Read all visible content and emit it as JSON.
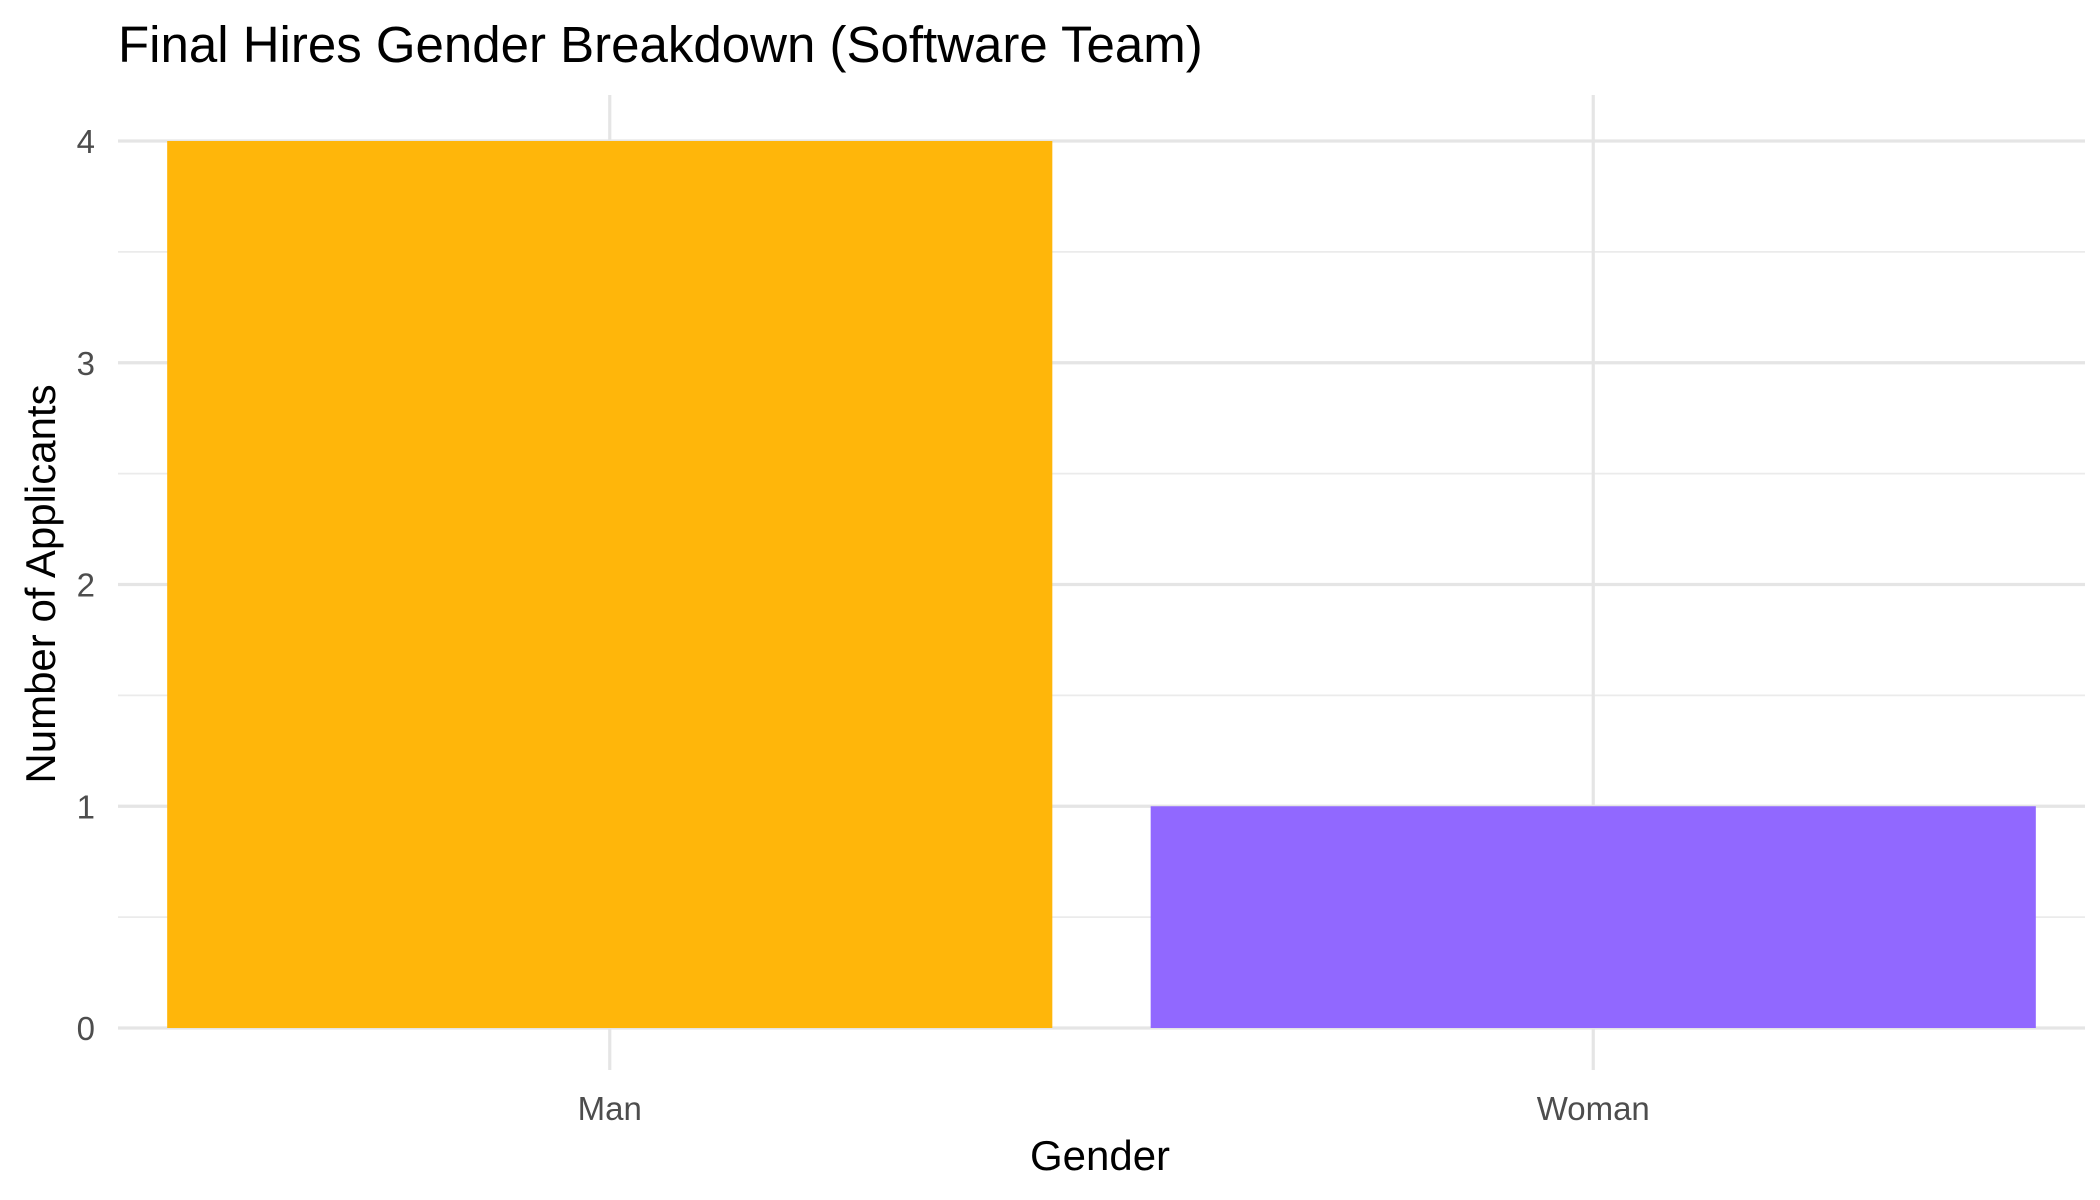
{
  "chart_data": {
    "type": "bar",
    "title": "Final Hires Gender Breakdown (Software Team)",
    "xlabel": "Gender",
    "ylabel": "Number of Applicants",
    "categories": [
      "Man",
      "Woman"
    ],
    "values": [
      4,
      1
    ],
    "colors": [
      "#FFB60A",
      "#9168FF"
    ],
    "ylim": [
      0,
      4
    ],
    "yticks": [
      0,
      1,
      2,
      3,
      4
    ],
    "grid": true,
    "legend": "none"
  }
}
